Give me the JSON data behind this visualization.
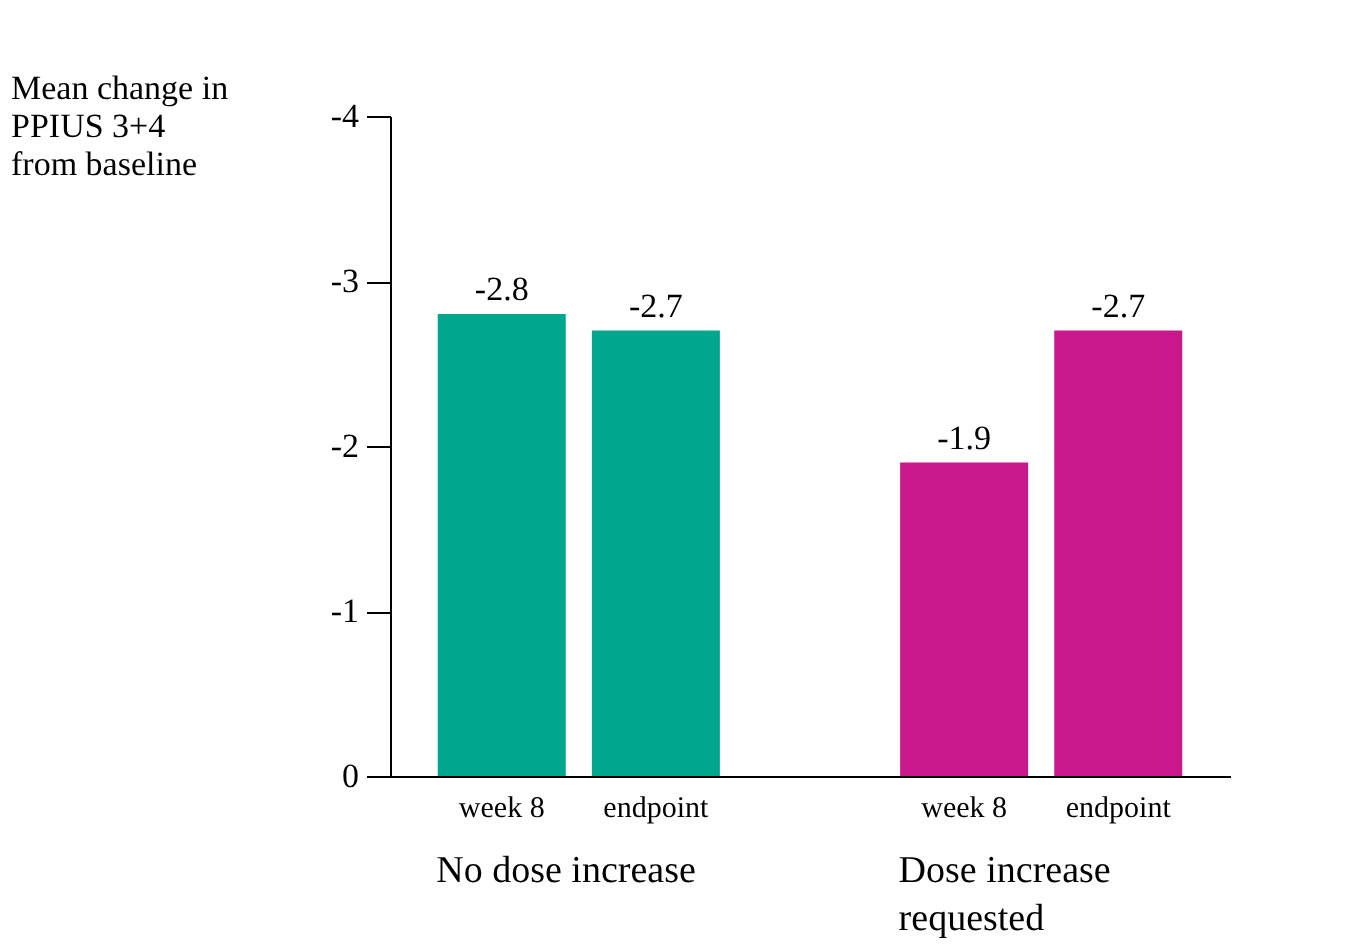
{
  "chart_data": {
    "type": "bar",
    "ylabel": "Mean change in\nPPIUS 3+4\nfrom baseline",
    "categories": [
      "week 8",
      "endpoint",
      "week 8",
      "endpoint"
    ],
    "values": [
      -2.8,
      -2.7,
      -1.9,
      -2.7
    ],
    "colors": [
      "#00a78e",
      "#00a78e",
      "#c8188c",
      "#c8188c"
    ],
    "ylim": [
      0,
      -4
    ],
    "yticks": [
      0,
      -1,
      -2,
      -3,
      -4
    ],
    "data_labels": true,
    "grid": false,
    "annotations": [
      "No dose increase",
      "Dose increase\nrequested"
    ]
  }
}
